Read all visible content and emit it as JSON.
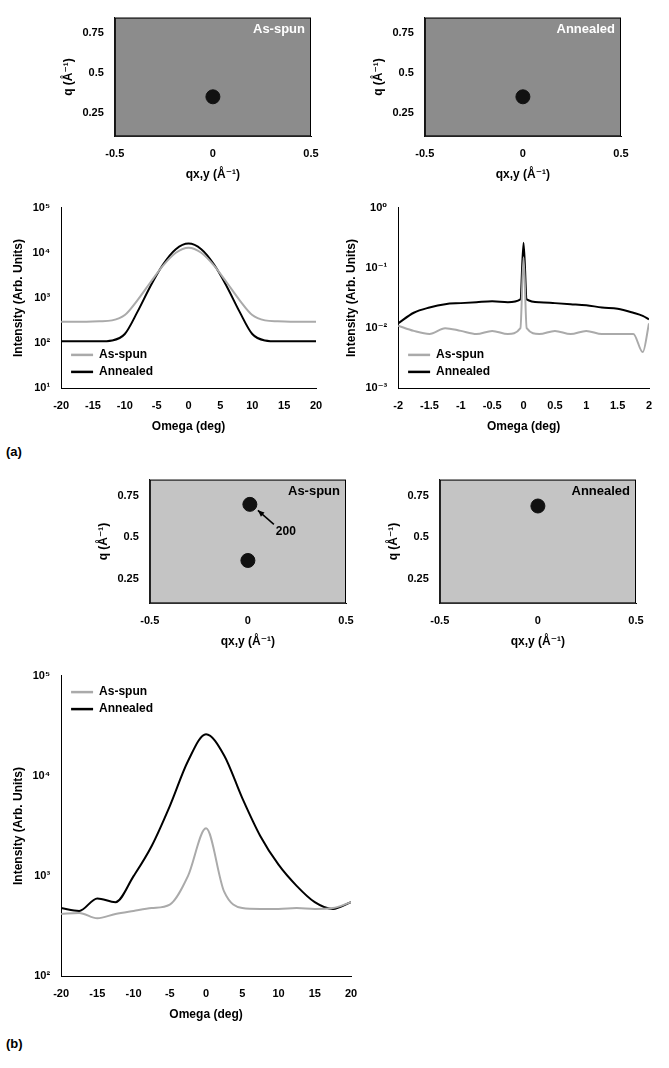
{
  "chart_data": [
    {
      "type": "scatter",
      "title": "As-spun",
      "x_label": "qx,y (Å⁻¹)",
      "y_label": "q (Å⁻¹)",
      "x": [
        0
      ],
      "values": [
        0.35
      ],
      "color": "#111111",
      "marker": "circle",
      "xlim": [
        -0.5,
        0.5
      ],
      "xticks": [
        -0.5,
        0,
        0.5
      ],
      "ylim": [
        0.1,
        0.85
      ],
      "yticks": [
        0.25,
        0.5,
        0.75
      ],
      "grid": false
    },
    {
      "type": "scatter",
      "title": "Annealed",
      "x_label": "qx,y (Å⁻¹)",
      "y_label": "q (Å⁻¹)",
      "x": [
        0
      ],
      "values": [
        0.35
      ],
      "color": "#111111",
      "marker": "circle",
      "xlim": [
        -0.5,
        0.5
      ],
      "xticks": [
        -0.5,
        0,
        0.5
      ],
      "ylim": [
        0.1,
        0.85
      ],
      "yticks": [
        0.25,
        0.5,
        0.75
      ],
      "grid": false
    },
    {
      "type": "line",
      "x_label": "Omega (deg)",
      "y_label": "Intensity (Arb. Units)",
      "x": [
        -20,
        -18,
        -16,
        -14,
        -12,
        -10,
        -8,
        -6,
        -4,
        -2,
        0,
        2,
        4,
        6,
        8,
        10,
        12,
        14,
        16,
        18,
        20
      ],
      "series": [
        {
          "name": "As-spun",
          "color": "#aaaaaa",
          "values": [
            300,
            300,
            300,
            305,
            320,
            420,
            900,
            2200,
            5200,
            10000,
            13000,
            10000,
            5200,
            2200,
            900,
            420,
            320,
            305,
            300,
            300,
            300
          ]
        },
        {
          "name": "Annealed",
          "color": "#000000",
          "values": [
            110,
            110,
            110,
            110,
            115,
            160,
            500,
            1800,
            5500,
            12000,
            16000,
            12000,
            5500,
            1800,
            500,
            160,
            115,
            110,
            110,
            110,
            110
          ]
        }
      ],
      "xlim": [
        -20,
        20
      ],
      "xticks": [
        -20,
        -15,
        -10,
        -5,
        0,
        5,
        10,
        15,
        20
      ],
      "ylim": [
        10,
        100000
      ],
      "yticks": [
        {
          "value": 10,
          "label": "10¹"
        },
        {
          "value": 100,
          "label": "10²"
        },
        {
          "value": 1000,
          "label": "10³"
        },
        {
          "value": 10000,
          "label": "10⁴"
        },
        {
          "value": 100000,
          "label": "10⁵"
        }
      ],
      "log": "y",
      "grid": false,
      "legend": "lower left"
    },
    {
      "type": "line",
      "x_label": "Omega (deg)",
      "y_label": "Intensity (Arb. Units)",
      "x": [
        -2,
        -1.75,
        -1.5,
        -1.25,
        -1,
        -0.75,
        -0.5,
        -0.25,
        -0.05,
        0,
        0.05,
        0.25,
        0.5,
        0.75,
        1,
        1.25,
        1.5,
        1.75,
        1.9,
        2
      ],
      "series": [
        {
          "name": "As-spun",
          "color": "#aaaaaa",
          "values": [
            0.011,
            0.009,
            0.008,
            0.01,
            0.009,
            0.008,
            0.009,
            0.008,
            0.01,
            0.15,
            0.01,
            0.008,
            0.009,
            0.008,
            0.009,
            0.008,
            0.008,
            0.008,
            0.004,
            0.012
          ]
        },
        {
          "name": "Annealed",
          "color": "#000000",
          "values": [
            0.012,
            0.018,
            0.022,
            0.025,
            0.026,
            0.027,
            0.028,
            0.027,
            0.03,
            0.26,
            0.03,
            0.027,
            0.026,
            0.025,
            0.024,
            0.022,
            0.021,
            0.018,
            0.016,
            0.014
          ]
        }
      ],
      "xlim": [
        -2,
        2
      ],
      "xticks": [
        -2,
        -1.5,
        -1,
        -0.5,
        0,
        0.5,
        1,
        1.5,
        2
      ],
      "ylim": [
        0.001,
        1
      ],
      "yticks": [
        {
          "value": 0.001,
          "label": "10⁻³"
        },
        {
          "value": 0.01,
          "label": "10⁻²"
        },
        {
          "value": 0.1,
          "label": "10⁻¹"
        },
        {
          "value": 1,
          "label": "10⁰"
        }
      ],
      "log": "y",
      "grid": false,
      "legend": "lower left"
    },
    {
      "type": "scatter",
      "title": "As-spun",
      "x_label": "qx,y (Å⁻¹)",
      "y_label": "q (Å⁻¹)",
      "x": [
        0,
        0.01
      ],
      "values": [
        0.36,
        0.7
      ],
      "color": "#111111",
      "marker": "circle",
      "annotations": [
        {
          "text": "200",
          "x": 0.01,
          "y": 0.7
        }
      ],
      "xlim": [
        -0.5,
        0.5
      ],
      "xticks": [
        -0.5,
        0,
        0.5
      ],
      "ylim": [
        0.1,
        0.85
      ],
      "yticks": [
        0.25,
        0.5,
        0.75
      ],
      "grid": false
    },
    {
      "type": "scatter",
      "title": "Annealed",
      "x_label": "qx,y (Å⁻¹)",
      "y_label": "q (Å⁻¹)",
      "x": [
        0
      ],
      "values": [
        0.69
      ],
      "color": "#111111",
      "marker": "circle",
      "xlim": [
        -0.5,
        0.5
      ],
      "xticks": [
        -0.5,
        0,
        0.5
      ],
      "ylim": [
        0.1,
        0.85
      ],
      "yticks": [
        0.25,
        0.5,
        0.75
      ],
      "grid": false
    },
    {
      "type": "line",
      "x_label": "Omega (deg)",
      "y_label": "Intensity (Arb. Units)",
      "x": [
        -20,
        -17.5,
        -15,
        -12.5,
        -10,
        -7.5,
        -5,
        -2.5,
        0,
        2.5,
        5,
        7.5,
        10,
        12.5,
        15,
        17.5,
        20
      ],
      "series": [
        {
          "name": "As-spun",
          "color": "#aaaaaa",
          "values": [
            420,
            430,
            380,
            420,
            450,
            480,
            520,
            1000,
            3000,
            700,
            480,
            470,
            470,
            480,
            470,
            480,
            550
          ]
        },
        {
          "name": "Annealed",
          "color": "#000000",
          "values": [
            480,
            450,
            600,
            550,
            1000,
            2000,
            5000,
            14000,
            26000,
            16000,
            6000,
            2500,
            1300,
            800,
            550,
            470,
            550
          ]
        }
      ],
      "xlim": [
        -20,
        20
      ],
      "xticks": [
        -20,
        -15,
        -10,
        -5,
        0,
        5,
        10,
        15,
        20
      ],
      "ylim": [
        100,
        100000
      ],
      "yticks": [
        {
          "value": 100,
          "label": "10²"
        },
        {
          "value": 1000,
          "label": "10³"
        },
        {
          "value": 10000,
          "label": "10⁴"
        },
        {
          "value": 100000,
          "label": "10⁵"
        }
      ],
      "log": "y",
      "grid": false,
      "legend": "upper left"
    }
  ],
  "panel_labels": [
    "(a)",
    "(b)"
  ]
}
